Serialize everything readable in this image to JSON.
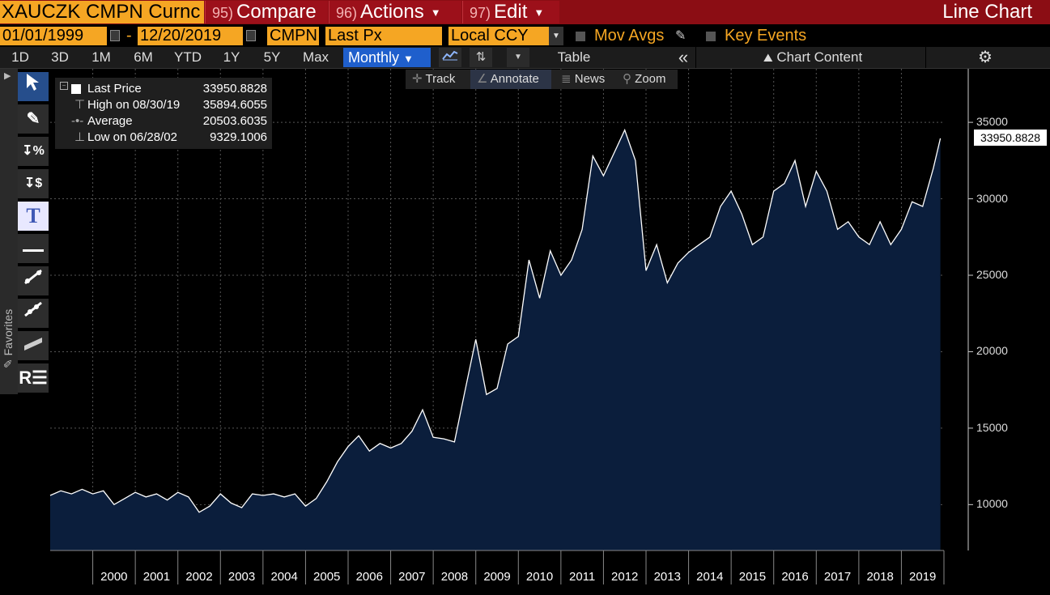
{
  "header": {
    "ticker": "XAUCZK CMPN Curnc",
    "tabs": [
      {
        "num": "95)",
        "label": "Compare"
      },
      {
        "num": "96)",
        "label": "Actions"
      },
      {
        "num": "97)",
        "label": "Edit"
      }
    ],
    "title": "Line Chart"
  },
  "options": {
    "start_date": "01/01/1999",
    "dash": "-",
    "end_date": "12/20/2019",
    "source": "CMPN",
    "field": "Last Px",
    "currency": "Local CCY",
    "mov_avgs": "Mov Avgs",
    "key_events": "Key Events"
  },
  "periods": [
    "1D",
    "3D",
    "1M",
    "6M",
    "YTD",
    "1Y",
    "5Y",
    "Max"
  ],
  "frequency": "Monthly",
  "table_label": "Table",
  "collapse_icon": "«",
  "chart_content_label": "Chart Content",
  "sidebar": {
    "favorites": "Favorites"
  },
  "chart_toolbar": {
    "track": "Track",
    "annotate": "Annotate",
    "news": "News",
    "zoom": "Zoom"
  },
  "legend": {
    "last_label": "Last Price",
    "last_value": "33950.8828",
    "high_label": "High on 08/30/19",
    "high_value": "35894.6055",
    "avg_label": "Average",
    "avg_value": "20503.6035",
    "low_label": "Low on 06/28/02",
    "low_value": "9329.1006"
  },
  "last_price_box": "33950.8828",
  "colors": {
    "line": "#ffffff",
    "fill": "#0b1e3c",
    "accent_orange": "#f5a623",
    "header_red": "#8b0d14"
  },
  "chart_data": {
    "type": "area",
    "series": [
      {
        "name": "Last Price",
        "x": [
          "1999-01",
          "1999-04",
          "1999-07",
          "1999-10",
          "2000-01",
          "2000-04",
          "2000-07",
          "2000-10",
          "2001-01",
          "2001-04",
          "2001-07",
          "2001-10",
          "2002-01",
          "2002-04",
          "2002-07",
          "2002-10",
          "2003-01",
          "2003-04",
          "2003-07",
          "2003-10",
          "2004-01",
          "2004-04",
          "2004-07",
          "2004-10",
          "2005-01",
          "2005-04",
          "2005-07",
          "2005-10",
          "2006-01",
          "2006-04",
          "2006-07",
          "2006-10",
          "2007-01",
          "2007-04",
          "2007-07",
          "2007-10",
          "2008-01",
          "2008-04",
          "2008-07",
          "2008-10",
          "2009-01",
          "2009-04",
          "2009-07",
          "2009-10",
          "2010-01",
          "2010-04",
          "2010-07",
          "2010-10",
          "2011-01",
          "2011-04",
          "2011-07",
          "2011-10",
          "2012-01",
          "2012-04",
          "2012-07",
          "2012-10",
          "2013-01",
          "2013-04",
          "2013-07",
          "2013-10",
          "2014-01",
          "2014-04",
          "2014-07",
          "2014-10",
          "2015-01",
          "2015-04",
          "2015-07",
          "2015-10",
          "2016-01",
          "2016-04",
          "2016-07",
          "2016-10",
          "2017-01",
          "2017-04",
          "2017-07",
          "2017-10",
          "2018-01",
          "2018-04",
          "2018-07",
          "2018-10",
          "2019-01",
          "2019-04",
          "2019-07",
          "2019-10",
          "2019-12"
        ],
        "values": [
          10600,
          10900,
          10700,
          11000,
          10700,
          10900,
          10000,
          10400,
          10800,
          10500,
          10700,
          10300,
          10800,
          10500,
          9500,
          9900,
          10700,
          10100,
          9800,
          10700,
          10600,
          10700,
          10500,
          10700,
          9900,
          10400,
          11500,
          12800,
          13800,
          14500,
          13500,
          14000,
          13700,
          14000,
          14800,
          16200,
          14400,
          14300,
          14100,
          17500,
          20800,
          17200,
          17600,
          20500,
          21000,
          26000,
          23500,
          26600,
          25000,
          26000,
          28000,
          32800,
          31500,
          33000,
          34500,
          32500,
          25300,
          27000,
          24500,
          25800,
          26500,
          27000,
          27500,
          29500,
          30500,
          29000,
          27000,
          27500,
          30500,
          31000,
          32500,
          29500,
          31800,
          30500,
          28000,
          28500,
          27500,
          27000,
          28500,
          27000,
          28000,
          29800,
          29500,
          32000,
          33950
        ]
      }
    ],
    "ylim": [
      7000,
      38500
    ],
    "yticks": [
      10000,
      15000,
      20000,
      25000,
      30000,
      35000
    ],
    "xticks": [
      "2000",
      "2001",
      "2002",
      "2003",
      "2004",
      "2005",
      "2006",
      "2007",
      "2008",
      "2009",
      "2010",
      "2011",
      "2012",
      "2013",
      "2014",
      "2015",
      "2016",
      "2017",
      "2018",
      "2019"
    ],
    "high": {
      "date": "08/30/19",
      "value": 35894.6055
    },
    "low": {
      "date": "06/28/02",
      "value": 9329.1006
    },
    "average": 20503.6035,
    "grid": true
  }
}
